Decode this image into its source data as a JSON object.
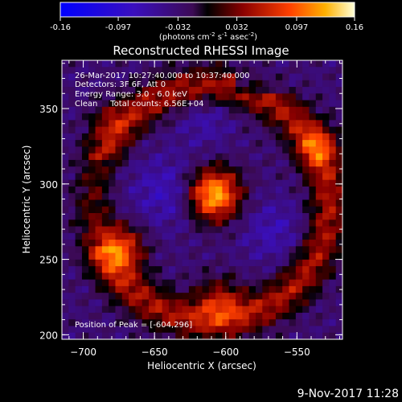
{
  "colorbar": {
    "tick_labels": [
      "-0.16",
      "-0.097",
      "-0.032",
      "0.032",
      "0.097",
      "0.16"
    ],
    "tick_values": [
      -0.16,
      -0.097,
      -0.032,
      0.032,
      0.097,
      0.16
    ],
    "range": [
      -0.16,
      0.16
    ],
    "units_main": "(photons cm",
    "units_sup1": "-2",
    "units_mid1": " s",
    "units_sup2": "-1",
    "units_mid2": " asec",
    "units_sup3": "-2",
    "units_end": ")"
  },
  "chart_data": {
    "type": "heatmap",
    "title": "Reconstructed RHESSI Image",
    "xlabel": "Heliocentric X (arcsec)",
    "ylabel": "Heliocentric Y (arcsec)",
    "xlim": [
      -715,
      -518
    ],
    "ylim": [
      197,
      382
    ],
    "x_ticks": [
      -700,
      -650,
      -600,
      -550
    ],
    "x_tick_labels": [
      "−700",
      "−650",
      "−600",
      "−550"
    ],
    "y_ticks": [
      200,
      250,
      300,
      350
    ],
    "y_tick_labels": [
      "200",
      "250",
      "300",
      "350"
    ],
    "annotations": [
      "26-Mar-2017 10:27:40.000 to 10:37:40.000",
      "Detectors: 3F 6F, Att 0",
      "Energy Range: 3.0 - 6.0 keV",
      "Clean     Total counts: 6.56E+04"
    ],
    "peak_label": "Position of Peak = [-604,296]",
    "peak": [
      -604,
      296
    ]
  },
  "footer": {
    "timestamp": "9-Nov-2017 11:28"
  }
}
